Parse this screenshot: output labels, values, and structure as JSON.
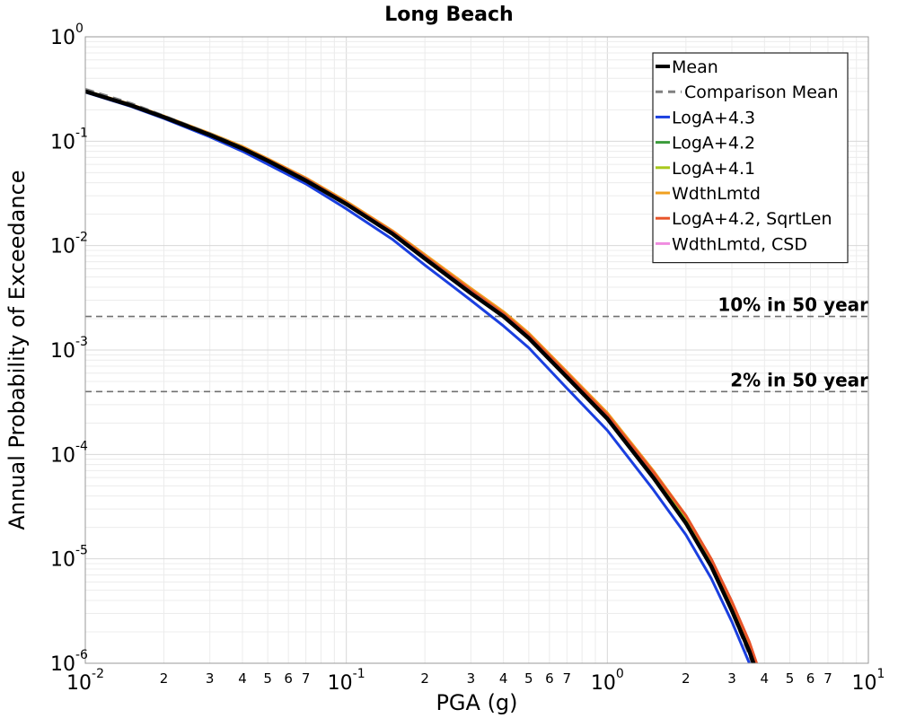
{
  "chart_data": {
    "type": "line",
    "title": "Long Beach",
    "xlabel": "PGA (g)",
    "ylabel": "Annual Probability of Exceedance",
    "x_scale": "log",
    "y_scale": "log",
    "xlim": [
      0.01,
      10
    ],
    "ylim": [
      1e-06,
      1
    ],
    "grid": true,
    "legend_position": "top-right",
    "x_major_ticks": [
      {
        "value": 0.01,
        "base": "10",
        "exp": "-2"
      },
      {
        "value": 0.1,
        "base": "10",
        "exp": "-1"
      },
      {
        "value": 1,
        "base": "10",
        "exp": "0"
      },
      {
        "value": 10,
        "base": "10",
        "exp": "1"
      }
    ],
    "y_major_ticks": [
      {
        "value": 1,
        "base": "10",
        "exp": "0"
      },
      {
        "value": 0.1,
        "base": "10",
        "exp": "-1"
      },
      {
        "value": 0.01,
        "base": "10",
        "exp": "-2"
      },
      {
        "value": 0.001,
        "base": "10",
        "exp": "-3"
      },
      {
        "value": 0.0001,
        "base": "10",
        "exp": "-4"
      },
      {
        "value": 1e-05,
        "base": "10",
        "exp": "-5"
      },
      {
        "value": 1e-06,
        "base": "10",
        "exp": "-6"
      }
    ],
    "x_minor_tick_labels": [
      "2",
      "3",
      "4",
      "5",
      "6",
      "7"
    ],
    "reference_lines": [
      {
        "label": "10% in 50 year",
        "y": 0.0021
      },
      {
        "label": "2% in 50 year",
        "y": 0.0004
      }
    ],
    "series": [
      {
        "name": "Mean",
        "color": "#000000",
        "dash": false,
        "x": [
          0.01,
          0.015,
          0.02,
          0.03,
          0.04,
          0.05,
          0.07,
          0.1,
          0.15,
          0.2,
          0.3,
          0.4,
          0.5,
          0.7,
          1.0,
          1.5,
          2.0,
          2.5,
          3.0,
          3.5,
          3.9
        ],
        "y": [
          0.3,
          0.22,
          0.17,
          0.115,
          0.085,
          0.065,
          0.042,
          0.025,
          0.013,
          0.0075,
          0.0035,
          0.0021,
          0.0013,
          0.00055,
          0.00022,
          6e-05,
          2.2e-05,
          8.5e-06,
          3.2e-06,
          1.3e-06,
          6e-07
        ]
      },
      {
        "name": "Comparison Mean",
        "color": "#808080",
        "dash": true,
        "x": [
          0.01,
          0.015,
          0.02,
          0.03,
          0.04,
          0.05,
          0.07,
          0.1,
          0.15,
          0.2,
          0.3,
          0.4,
          0.5,
          0.7,
          1.0,
          1.5,
          2.0,
          2.5,
          3.0,
          3.5,
          3.9
        ],
        "y": [
          0.315,
          0.23,
          0.175,
          0.118,
          0.087,
          0.066,
          0.043,
          0.0255,
          0.0133,
          0.0077,
          0.0036,
          0.00215,
          0.00133,
          0.00056,
          0.000225,
          6.1e-05,
          2.2e-05,
          8.5e-06,
          3.1e-06,
          1.2e-06,
          5.5e-07
        ]
      },
      {
        "name": "LogA+4.3",
        "color": "#1a3fe0",
        "dash": false,
        "x": [
          0.01,
          0.015,
          0.02,
          0.03,
          0.04,
          0.05,
          0.07,
          0.1,
          0.15,
          0.2,
          0.3,
          0.4,
          0.5,
          0.7,
          1.0,
          1.5,
          2.0,
          2.5,
          3.0,
          3.5,
          3.85
        ],
        "y": [
          0.295,
          0.215,
          0.165,
          0.11,
          0.08,
          0.06,
          0.039,
          0.0225,
          0.0115,
          0.0065,
          0.003,
          0.0017,
          0.00105,
          0.00043,
          0.00017,
          4.6e-05,
          1.7e-05,
          6.5e-06,
          2.5e-06,
          1e-06,
          6e-07
        ]
      },
      {
        "name": "LogA+4.2",
        "color": "#3c9c3c",
        "dash": false,
        "x": [
          0.01,
          0.015,
          0.02,
          0.03,
          0.04,
          0.05,
          0.07,
          0.1,
          0.15,
          0.2,
          0.3,
          0.4,
          0.5,
          0.7,
          1.0,
          1.5,
          2.0,
          2.5,
          3.0,
          3.5,
          3.95
        ],
        "y": [
          0.302,
          0.222,
          0.171,
          0.116,
          0.086,
          0.066,
          0.043,
          0.0255,
          0.0133,
          0.0078,
          0.0037,
          0.0022,
          0.00138,
          0.00059,
          0.000235,
          6.5e-05,
          2.4e-05,
          9.3e-06,
          3.5e-06,
          1.4e-06,
          6e-07
        ]
      },
      {
        "name": "LogA+4.1",
        "color": "#a8c81c",
        "dash": false,
        "x": [
          0.01,
          0.015,
          0.02,
          0.03,
          0.04,
          0.05,
          0.07,
          0.1,
          0.15,
          0.2,
          0.3,
          0.4,
          0.5,
          0.7,
          1.0,
          1.5,
          2.0,
          2.5,
          3.0,
          3.5,
          3.95
        ],
        "y": [
          0.304,
          0.224,
          0.173,
          0.118,
          0.088,
          0.067,
          0.044,
          0.026,
          0.0137,
          0.008,
          0.0038,
          0.00228,
          0.00142,
          0.00061,
          0.000245,
          6.8e-05,
          2.5e-05,
          9.7e-06,
          3.7e-06,
          1.5e-06,
          6e-07
        ]
      },
      {
        "name": "WdthLmtd",
        "color": "#f0a020",
        "dash": false,
        "x": [
          0.01,
          0.015,
          0.02,
          0.03,
          0.04,
          0.05,
          0.07,
          0.1,
          0.15,
          0.2,
          0.3,
          0.4,
          0.5,
          0.7,
          1.0,
          1.5,
          2.0,
          2.5,
          3.0,
          3.5,
          3.95
        ],
        "y": [
          0.305,
          0.225,
          0.174,
          0.119,
          0.089,
          0.068,
          0.0445,
          0.0265,
          0.0139,
          0.0082,
          0.0039,
          0.00233,
          0.00145,
          0.00062,
          0.00025,
          7e-05,
          2.6e-05,
          1e-05,
          3.8e-06,
          1.5e-06,
          6e-07
        ]
      },
      {
        "name": "LogA+4.2, SqrtLen",
        "color": "#e8542a",
        "dash": false,
        "x": [
          0.01,
          0.015,
          0.02,
          0.03,
          0.04,
          0.05,
          0.07,
          0.1,
          0.15,
          0.2,
          0.3,
          0.4,
          0.5,
          0.7,
          1.0,
          1.5,
          2.0,
          2.5,
          3.0,
          3.5,
          4.0
        ],
        "y": [
          0.303,
          0.223,
          0.172,
          0.117,
          0.087,
          0.0665,
          0.0437,
          0.0258,
          0.0136,
          0.0079,
          0.00375,
          0.00224,
          0.0014,
          0.0006,
          0.00024,
          6.8e-05,
          2.6e-05,
          1e-05,
          3.9e-06,
          1.6e-06,
          6e-07
        ]
      },
      {
        "name": "WdthLmtd, CSD",
        "color": "#f08ce0",
        "dash": false,
        "x": [
          0.01,
          0.015,
          0.02,
          0.03,
          0.04,
          0.05,
          0.07,
          0.1,
          0.15,
          0.2,
          0.3,
          0.4,
          0.5,
          0.7,
          1.0,
          1.5,
          2.0,
          2.5,
          3.0,
          3.5,
          3.9
        ],
        "y": [
          0.301,
          0.221,
          0.171,
          0.116,
          0.086,
          0.0655,
          0.0428,
          0.0253,
          0.0132,
          0.0076,
          0.00355,
          0.00212,
          0.00132,
          0.00056,
          0.000223,
          6.1e-05,
          2.2e-05,
          8.6e-06,
          3.2e-06,
          1.3e-06,
          6e-07
        ]
      }
    ]
  }
}
